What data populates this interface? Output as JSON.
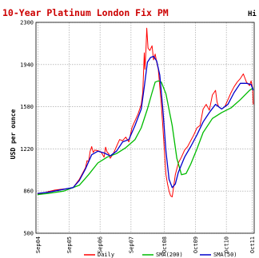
{
  "colors": {
    "title": "#cc0000",
    "daily": "#ff0000",
    "sma200": "#00bb00",
    "sma50": "#0000cc",
    "grid": "#999999",
    "border": "#000000"
  },
  "chart_data": {
    "type": "line",
    "title": "10-Year Platinum London Fix PM",
    "title_right_fragment": "Hi",
    "ylabel": "USD per ounce",
    "xlabel": "",
    "ylim": [
      500,
      2300
    ],
    "yticks": [
      500,
      860,
      1220,
      1580,
      1940,
      2300
    ],
    "xlim": [
      2004.6,
      2011.65
    ],
    "xticks": [
      {
        "label": "Sep04",
        "x": 2004.67
      },
      {
        "label": "Sep05",
        "x": 2005.67
      },
      {
        "label": "Sep06",
        "x": 2006.67
      },
      {
        "label": "Sep07",
        "x": 2007.67
      },
      {
        "label": "Oct08",
        "x": 2008.75
      },
      {
        "label": "Oct09",
        "x": 2009.75
      },
      {
        "label": "Oct10",
        "x": 2010.75
      },
      {
        "label": "Oct11",
        "x": 2011.58
      }
    ],
    "grid": true,
    "legend_position": "bottom",
    "series": [
      {
        "name": "Daily",
        "color_key": "daily",
        "x": [
          2004.65,
          2004.8,
          2005.0,
          2005.2,
          2005.4,
          2005.6,
          2005.8,
          2006.0,
          2006.1,
          2006.2,
          2006.25,
          2006.3,
          2006.35,
          2006.4,
          2006.45,
          2006.5,
          2006.6,
          2006.7,
          2006.8,
          2006.85,
          2006.9,
          2006.95,
          2007.0,
          2007.1,
          2007.2,
          2007.3,
          2007.4,
          2007.5,
          2007.6,
          2007.7,
          2007.8,
          2007.9,
          2008.0,
          2008.05,
          2008.1,
          2008.12,
          2008.15,
          2008.18,
          2008.22,
          2008.28,
          2008.35,
          2008.4,
          2008.45,
          2008.5,
          2008.55,
          2008.6,
          2008.65,
          2008.7,
          2008.75,
          2008.8,
          2008.85,
          2008.9,
          2008.95,
          2009.0,
          2009.05,
          2009.1,
          2009.2,
          2009.3,
          2009.4,
          2009.5,
          2009.6,
          2009.7,
          2009.8,
          2009.9,
          2010.0,
          2010.1,
          2010.2,
          2010.3,
          2010.35,
          2010.4,
          2010.45,
          2010.5,
          2010.6,
          2010.7,
          2010.8,
          2010.9,
          2011.0,
          2011.1,
          2011.2,
          2011.3,
          2011.4,
          2011.5,
          2011.55,
          2011.6,
          2011.62
        ],
        "y": [
          835,
          840,
          855,
          868,
          875,
          880,
          890,
          960,
          1010,
          1060,
          1120,
          1110,
          1200,
          1240,
          1190,
          1210,
          1205,
          1195,
          1150,
          1235,
          1190,
          1180,
          1140,
          1180,
          1240,
          1300,
          1290,
          1320,
          1280,
          1400,
          1460,
          1520,
          1600,
          1700,
          2040,
          1900,
          2050,
          2250,
          2080,
          2060,
          2100,
          1980,
          2030,
          1960,
          1900,
          1750,
          1600,
          1400,
          1200,
          1000,
          920,
          860,
          820,
          810,
          900,
          1000,
          1100,
          1150,
          1210,
          1240,
          1290,
          1340,
          1400,
          1420,
          1560,
          1600,
          1550,
          1680,
          1700,
          1720,
          1620,
          1580,
          1560,
          1580,
          1640,
          1700,
          1750,
          1790,
          1820,
          1860,
          1790,
          1760,
          1800,
          1740,
          1600
        ]
      },
      {
        "name": "SMA(50)",
        "color_key": "sma50",
        "x": [
          2004.65,
          2005.0,
          2005.4,
          2005.8,
          2006.0,
          2006.2,
          2006.4,
          2006.6,
          2006.8,
          2007.0,
          2007.2,
          2007.4,
          2007.6,
          2007.8,
          2008.0,
          2008.1,
          2008.2,
          2008.3,
          2008.4,
          2008.5,
          2008.6,
          2008.7,
          2008.8,
          2008.9,
          2009.0,
          2009.1,
          2009.2,
          2009.4,
          2009.6,
          2009.8,
          2010.0,
          2010.2,
          2010.4,
          2010.6,
          2010.8,
          2011.0,
          2011.2,
          2011.4,
          2011.55,
          2011.62
        ],
        "y": [
          840,
          850,
          870,
          890,
          950,
          1050,
          1170,
          1200,
          1185,
          1160,
          1200,
          1280,
          1300,
          1420,
          1560,
          1750,
          1960,
          2000,
          2010,
          1970,
          1850,
          1550,
          1200,
          960,
          890,
          920,
          1020,
          1150,
          1240,
          1340,
          1450,
          1530,
          1600,
          1560,
          1600,
          1700,
          1780,
          1780,
          1770,
          1720
        ]
      },
      {
        "name": "SMA(200)",
        "color_key": "sma200",
        "x": [
          2004.65,
          2005.0,
          2005.5,
          2006.0,
          2006.3,
          2006.6,
          2006.9,
          2007.2,
          2007.5,
          2007.8,
          2008.0,
          2008.2,
          2008.35,
          2008.45,
          2008.55,
          2008.65,
          2008.8,
          2009.0,
          2009.15,
          2009.3,
          2009.45,
          2009.6,
          2009.8,
          2010.0,
          2010.3,
          2010.6,
          2010.9,
          2011.2,
          2011.5,
          2011.62
        ],
        "y": [
          830,
          840,
          860,
          910,
          1000,
          1100,
          1150,
          1180,
          1230,
          1300,
          1400,
          1560,
          1700,
          1790,
          1800,
          1790,
          1690,
          1420,
          1140,
          1000,
          1010,
          1090,
          1220,
          1360,
          1480,
          1530,
          1570,
          1640,
          1720,
          1740
        ]
      }
    ]
  }
}
